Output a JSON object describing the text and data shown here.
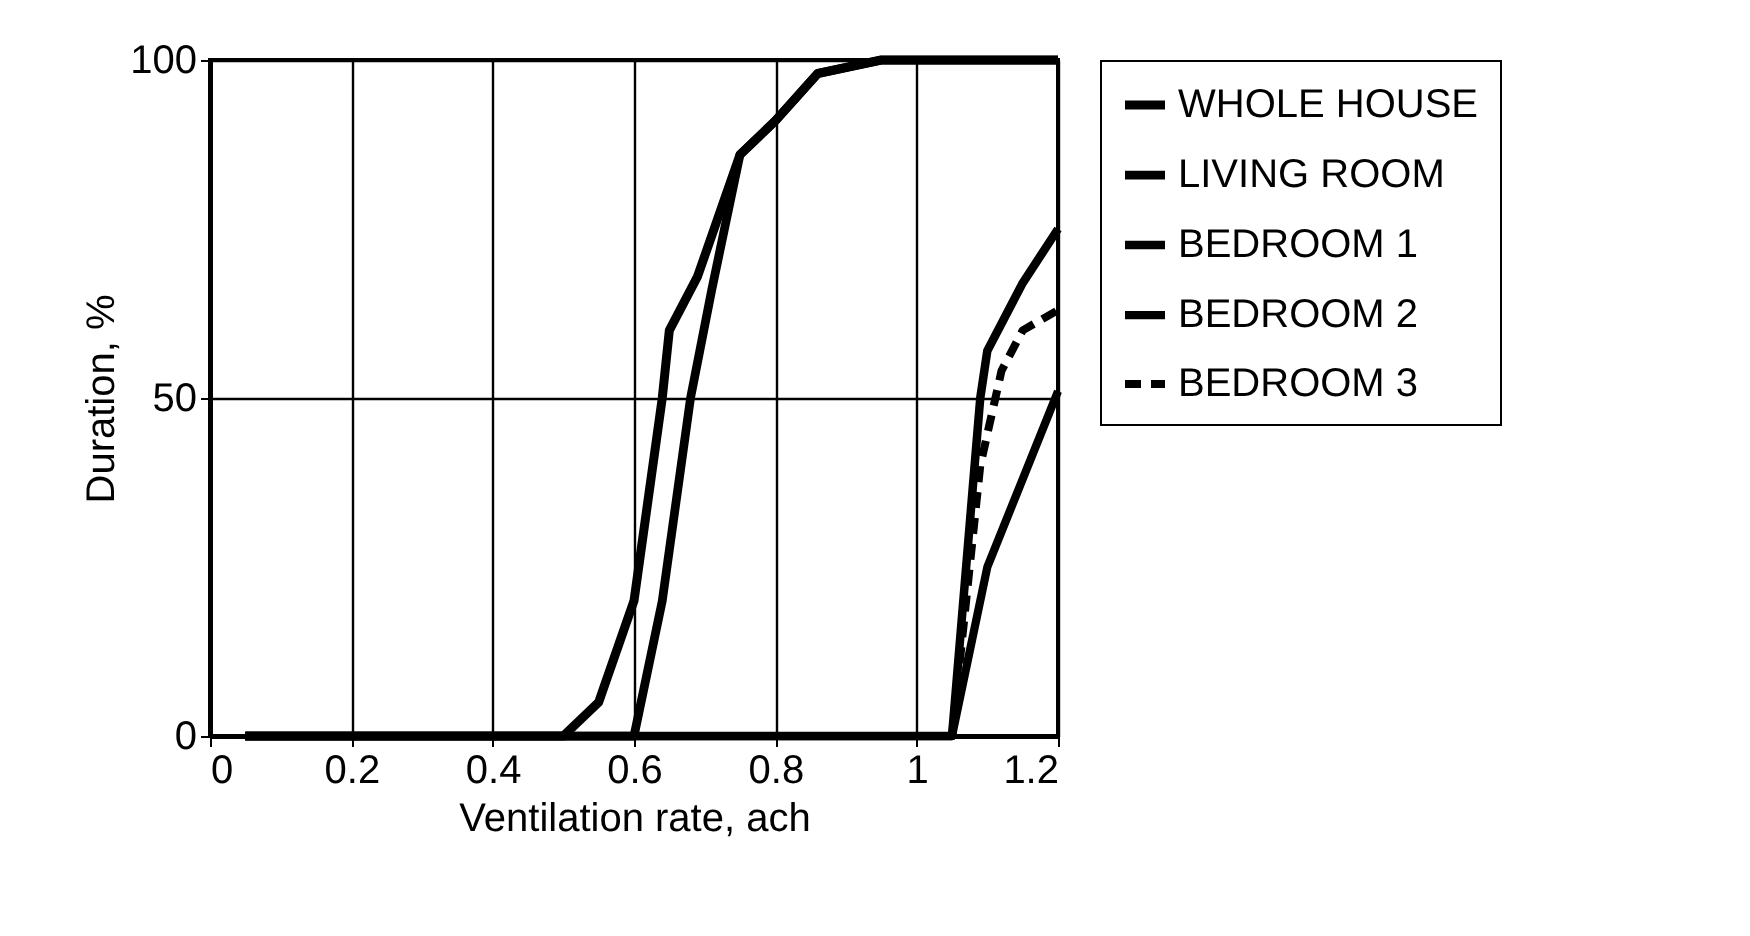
{
  "chart_data": {
    "type": "line",
    "xlabel": "Ventilation rate, ach",
    "ylabel": "Duration, %",
    "xlim": [
      0,
      1.2
    ],
    "xticks": [
      0,
      0.2,
      0.4,
      0.6,
      0.8,
      1,
      1.2
    ],
    "ylim": [
      0,
      100
    ],
    "yticks": [
      0,
      50,
      100
    ],
    "grid": true,
    "legend": "right",
    "marker": "none",
    "series": [
      {
        "name": "WHOLE HOUSE",
        "color": "#000000",
        "line_style": "solid",
        "x": [
          0.05,
          0.5,
          0.55,
          0.6,
          0.64,
          0.65,
          0.69,
          0.75,
          0.8,
          0.86,
          0.95,
          1.2
        ],
        "values": [
          0,
          0,
          5,
          20,
          50,
          60,
          68,
          86,
          91,
          98,
          100,
          100
        ]
      },
      {
        "name": "LIVING ROOM",
        "color": "#000000",
        "line_style": "solid",
        "x": [
          0.05,
          0.6,
          0.64,
          0.68,
          0.71,
          0.75,
          0.8,
          0.86,
          0.95,
          1.2
        ],
        "values": [
          0,
          0,
          20,
          50,
          66,
          86,
          91,
          98,
          100,
          100
        ]
      },
      {
        "name": "BEDROOM 1",
        "color": "#000000",
        "line_style": "solid",
        "x": [
          0.05,
          1.05,
          1.09,
          1.1,
          1.15,
          1.2
        ],
        "values": [
          0,
          0,
          50,
          57,
          67,
          75
        ]
      },
      {
        "name": "BEDROOM 2",
        "color": "#000000",
        "line_style": "solid",
        "x": [
          0.05,
          1.05,
          1.1,
          1.2
        ],
        "values": [
          0,
          0,
          25,
          51
        ]
      },
      {
        "name": "BEDROOM 3",
        "color": "#000000",
        "line_style": "dashed",
        "x": [
          0.05,
          1.05,
          1.09,
          1.12,
          1.15,
          1.2
        ],
        "values": [
          0,
          0,
          40,
          54,
          60,
          63
        ]
      }
    ]
  }
}
